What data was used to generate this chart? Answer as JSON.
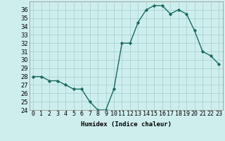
{
  "title": "",
  "xlabel": "Humidex (Indice chaleur)",
  "ylabel": "",
  "x": [
    0,
    1,
    2,
    3,
    4,
    5,
    6,
    7,
    8,
    9,
    10,
    11,
    12,
    13,
    14,
    15,
    16,
    17,
    18,
    19,
    20,
    21,
    22,
    23
  ],
  "y": [
    28,
    28,
    27.5,
    27.5,
    27,
    26.5,
    26.5,
    25,
    24,
    24,
    26.5,
    32,
    32,
    34.5,
    36,
    36.5,
    36.5,
    35.5,
    36,
    35.5,
    33.5,
    31,
    30.5,
    29.5
  ],
  "xlim": [
    -0.5,
    23.5
  ],
  "ylim": [
    24,
    37
  ],
  "yticks": [
    24,
    25,
    26,
    27,
    28,
    29,
    30,
    31,
    32,
    33,
    34,
    35,
    36
  ],
  "xticks": [
    0,
    1,
    2,
    3,
    4,
    5,
    6,
    7,
    8,
    9,
    10,
    11,
    12,
    13,
    14,
    15,
    16,
    17,
    18,
    19,
    20,
    21,
    22,
    23
  ],
  "xtick_labels": [
    "0",
    "1",
    "2",
    "3",
    "4",
    "5",
    "6",
    "7",
    "8",
    "9",
    "10",
    "11",
    "12",
    "13",
    "14",
    "15",
    "16",
    "17",
    "18",
    "19",
    "20",
    "21",
    "22",
    "23"
  ],
  "line_color": "#1a6b5e",
  "marker": "D",
  "marker_size": 2.2,
  "line_width": 1.0,
  "bg_color": "#ceeeed",
  "grid_color": "#a8d4d0",
  "label_fontsize": 6.5,
  "tick_fontsize": 6
}
